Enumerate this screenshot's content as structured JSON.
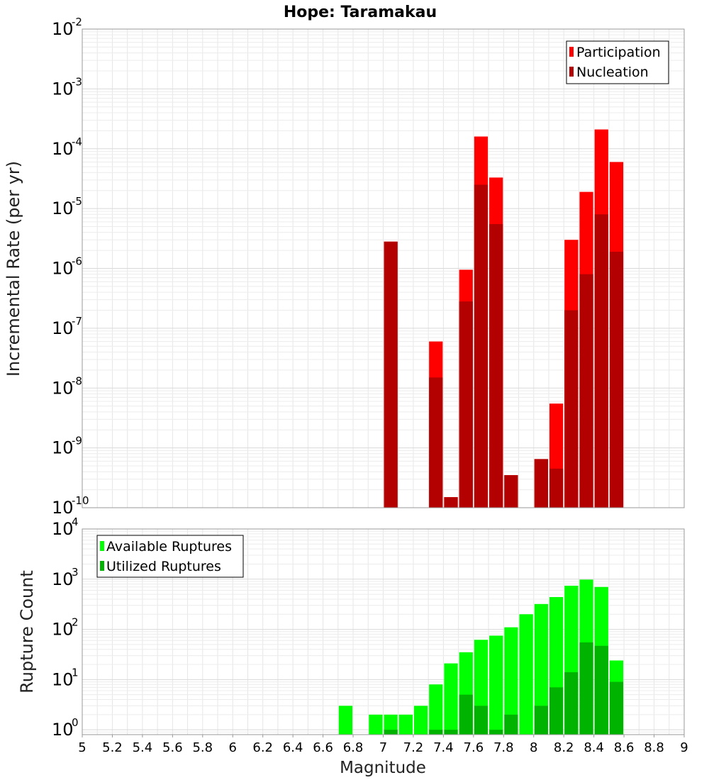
{
  "chart_data": [
    {
      "type": "bar",
      "title": "Hope: Taramakau",
      "ylabel": "Incremental Rate (per yr)",
      "xlabel": "",
      "yscale": "log",
      "ylim": [
        1e-10,
        0.01
      ],
      "xlim": [
        5,
        9
      ],
      "grid": true,
      "legend_placement": "top-right",
      "x": [
        7.05,
        7.35,
        7.45,
        7.55,
        7.65,
        7.75,
        7.85,
        8.05,
        8.15,
        8.25,
        8.35,
        8.45,
        8.55
      ],
      "series": [
        {
          "name": "Participation",
          "color": "#ff0000",
          "values": [
            2.8e-06,
            6e-08,
            1.5e-10,
            9.5e-07,
            0.00016,
            3.3e-05,
            3.5e-10,
            6.5e-10,
            5.5e-09,
            3e-06,
            1.9e-05,
            0.00021,
            6e-05
          ]
        },
        {
          "name": "Nucleation",
          "color": "#b30000",
          "values": [
            2.8e-06,
            1.5e-08,
            1.5e-10,
            2.8e-07,
            2.5e-05,
            5.5e-06,
            3.5e-10,
            6.5e-10,
            4.5e-10,
            2e-07,
            8e-07,
            8e-06,
            1.9e-06
          ]
        }
      ]
    },
    {
      "type": "bar",
      "title": "",
      "ylabel": "Rupture Count",
      "xlabel": "Magnitude",
      "yscale": "log",
      "ylim": [
        0.8,
        10000
      ],
      "xlim": [
        5,
        9
      ],
      "grid": true,
      "legend_placement": "top-left",
      "x": [
        6.75,
        6.95,
        7.05,
        7.15,
        7.25,
        7.35,
        7.45,
        7.55,
        7.65,
        7.75,
        7.85,
        7.95,
        8.05,
        8.15,
        8.25,
        8.35,
        8.45,
        8.55
      ],
      "series": [
        {
          "name": "Available Ruptures",
          "color": "#00ff00",
          "values": [
            3,
            2,
            2,
            2,
            3,
            8,
            21,
            35,
            62,
            75,
            110,
            200,
            320,
            440,
            740,
            980,
            700,
            24
          ]
        },
        {
          "name": "Utilized Ruptures",
          "color": "#00b300",
          "values": [
            0,
            0,
            1,
            0,
            0,
            1,
            1,
            5,
            3,
            1,
            2,
            0,
            3,
            7,
            14,
            55,
            47,
            9
          ]
        }
      ]
    }
  ],
  "x_ticks": [
    "5",
    "5.2",
    "5.4",
    "5.6",
    "5.8",
    "6",
    "6.2",
    "6.4",
    "6.6",
    "6.8",
    "7",
    "7.2",
    "7.4",
    "7.6",
    "7.8",
    "8",
    "8.2",
    "8.4",
    "8.6",
    "8.8",
    "9"
  ],
  "top_y_ticks": [
    {
      "base": "10",
      "exp": "-10"
    },
    {
      "base": "10",
      "exp": "-9"
    },
    {
      "base": "10",
      "exp": "-8"
    },
    {
      "base": "10",
      "exp": "-7"
    },
    {
      "base": "10",
      "exp": "-6"
    },
    {
      "base": "10",
      "exp": "-5"
    },
    {
      "base": "10",
      "exp": "-4"
    },
    {
      "base": "10",
      "exp": "-3"
    },
    {
      "base": "10",
      "exp": "-2"
    }
  ],
  "bottom_y_ticks": [
    {
      "base": "10",
      "exp": "0"
    },
    {
      "base": "10",
      "exp": "1"
    },
    {
      "base": "10",
      "exp": "2"
    },
    {
      "base": "10",
      "exp": "3"
    },
    {
      "base": "10",
      "exp": "4"
    }
  ]
}
